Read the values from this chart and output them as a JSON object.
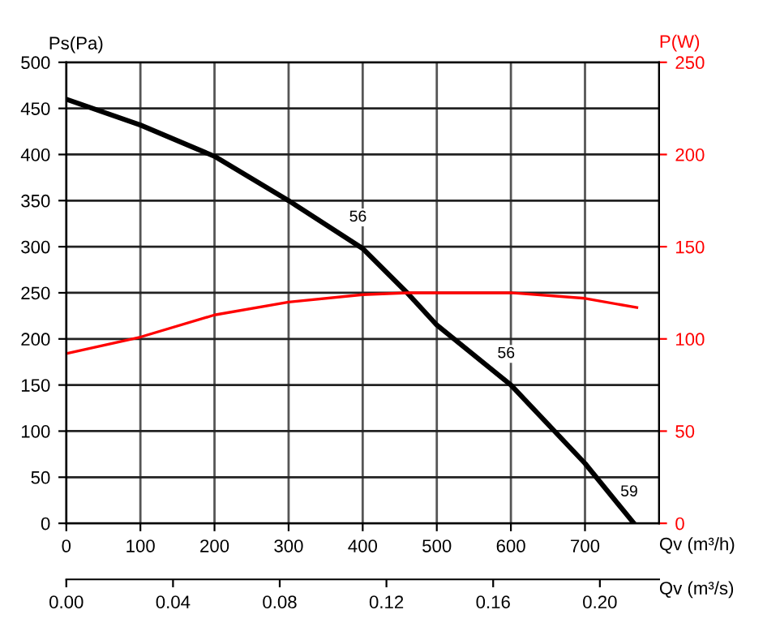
{
  "chart_data": {
    "type": "line",
    "xlabel": "Qv (m³/h)",
    "x2label": "Qv (m³/s)",
    "ylabel": "Ps(Pa)",
    "y2label": "P(W)",
    "series": [
      {
        "color": "#000000",
        "x": [
          0,
          100,
          200,
          300,
          400,
          460,
          500,
          600,
          700,
          766
        ],
        "values": [
          460,
          432,
          398,
          350,
          298,
          250,
          215,
          150,
          65,
          0
        ]
      },
      {
        "color": "#ff0000",
        "axis": "y2",
        "x": [
          0,
          100,
          200,
          300,
          400,
          460,
          600,
          700,
          770
        ],
        "values": [
          92,
          101,
          113,
          120,
          124,
          125,
          125,
          122,
          117
        ]
      }
    ],
    "annotations": [
      {
        "text": "56",
        "x": 400,
        "y": 298
      },
      {
        "text": "56",
        "x": 600,
        "y": 150
      },
      {
        "text": "59",
        "x": 766,
        "y": 0
      }
    ],
    "xlim": [
      0,
      800
    ],
    "xticks": [
      0,
      100,
      200,
      300,
      400,
      500,
      600,
      700
    ],
    "x2lim": [
      0,
      0.2222
    ],
    "x2ticks": [
      {
        "value": 0,
        "label": "0.00"
      },
      {
        "value": 0.04,
        "label": "0.04"
      },
      {
        "value": 0.08,
        "label": "0.08"
      },
      {
        "value": 0.12,
        "label": "0.12"
      },
      {
        "value": 0.16,
        "label": "0.16"
      },
      {
        "value": 0.2,
        "label": "0.20"
      }
    ],
    "ylim": [
      0,
      500
    ],
    "yticks": [
      0,
      50,
      100,
      150,
      200,
      250,
      300,
      350,
      400,
      450,
      500
    ],
    "y2lim": [
      0,
      250
    ],
    "y2ticks": [
      0,
      50,
      100,
      150,
      200,
      250
    ],
    "grid": true,
    "line_style": "solid",
    "marker": "none"
  }
}
